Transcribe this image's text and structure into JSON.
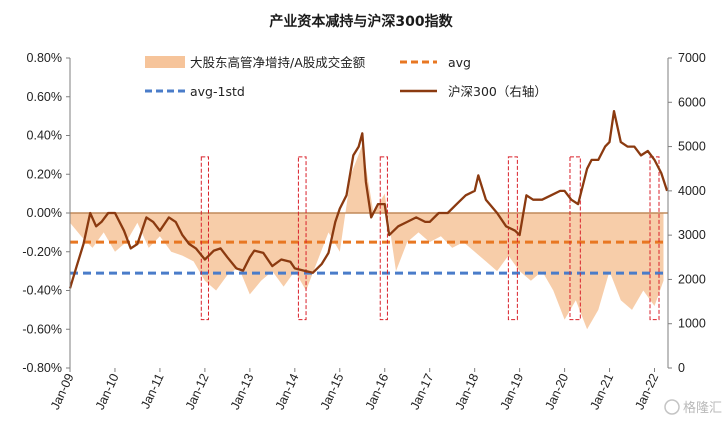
{
  "chart_data": {
    "type": "area",
    "title": "产业资本减持与沪深300指数",
    "left_axis": {
      "ylim": [
        -0.8,
        0.8
      ],
      "ticks": [
        "0.80%",
        "0.60%",
        "0.40%",
        "0.20%",
        "0.00%",
        "-0.20%",
        "-0.40%",
        "-0.60%",
        "-0.80%"
      ]
    },
    "right_axis": {
      "ylim": [
        0,
        7000
      ],
      "ticks": [
        "7000",
        "6000",
        "5000",
        "4000",
        "3000",
        "2000",
        "1000",
        "0"
      ]
    },
    "x_ticks": [
      "Jan-09",
      "Jan-10",
      "Jan-11",
      "Jan-12",
      "Jan-13",
      "Jan-14",
      "Jan-15",
      "Jan-16",
      "Jan-17",
      "Jan-18",
      "Jan-19",
      "Jan-20",
      "Jan-21",
      "Jan-22"
    ],
    "x_range": [
      2009.0,
      2022.3
    ],
    "legend": [
      {
        "label": "大股东高管净增持/A股成交金额",
        "kind": "area"
      },
      {
        "label": "avg",
        "kind": "dashed-orange"
      },
      {
        "label": "avg-1std",
        "kind": "dashed-blue"
      },
      {
        "label": "沪深300（右轴）",
        "kind": "line"
      }
    ],
    "series": [
      {
        "name": "大股东高管净增持/A股成交金额",
        "axis": "left",
        "color": "#f6c49a",
        "x": [
          2009.0,
          2009.25,
          2009.5,
          2009.75,
          2010.0,
          2010.25,
          2010.5,
          2010.75,
          2011.0,
          2011.25,
          2011.5,
          2011.75,
          2012.0,
          2012.25,
          2012.5,
          2012.75,
          2013.0,
          2013.25,
          2013.5,
          2013.75,
          2014.0,
          2014.25,
          2014.5,
          2014.75,
          2015.0,
          2015.25,
          2015.5,
          2015.75,
          2016.0,
          2016.25,
          2016.5,
          2016.75,
          2017.0,
          2017.25,
          2017.5,
          2017.75,
          2018.0,
          2018.25,
          2018.5,
          2018.75,
          2019.0,
          2019.25,
          2019.5,
          2019.75,
          2020.0,
          2020.25,
          2020.5,
          2020.75,
          2021.0,
          2021.25,
          2021.5,
          2021.75,
          2022.0,
          2022.2
        ],
        "values": [
          -0.05,
          -0.12,
          -0.18,
          -0.1,
          -0.2,
          -0.15,
          -0.05,
          -0.18,
          -0.12,
          -0.2,
          -0.22,
          -0.25,
          -0.35,
          -0.4,
          -0.32,
          -0.28,
          -0.42,
          -0.35,
          -0.3,
          -0.38,
          -0.3,
          -0.4,
          -0.25,
          -0.1,
          -0.2,
          0.2,
          0.35,
          0.0,
          0.1,
          -0.3,
          -0.15,
          -0.1,
          -0.15,
          -0.12,
          -0.18,
          -0.15,
          -0.2,
          -0.25,
          -0.3,
          -0.22,
          -0.3,
          -0.35,
          -0.3,
          -0.4,
          -0.55,
          -0.45,
          -0.6,
          -0.5,
          -0.3,
          -0.45,
          -0.5,
          -0.4,
          -0.48,
          -0.35
        ]
      },
      {
        "name": "avg",
        "axis": "left",
        "color": "#e87722",
        "x": [
          2009.0,
          2022.3
        ],
        "values": [
          -0.15,
          -0.15
        ]
      },
      {
        "name": "avg-1std",
        "axis": "left",
        "color": "#4a7cc9",
        "x": [
          2009.0,
          2022.3
        ],
        "values": [
          -0.31,
          -0.31
        ]
      },
      {
        "name": "沪深300（右轴）",
        "axis": "right",
        "color": "#8b3a10",
        "x": [
          2009.0,
          2009.15,
          2009.3,
          2009.45,
          2009.58,
          2009.7,
          2009.85,
          2010.0,
          2010.2,
          2010.35,
          2010.5,
          2010.7,
          2010.85,
          2011.0,
          2011.2,
          2011.35,
          2011.5,
          2011.65,
          2011.8,
          2012.0,
          2012.2,
          2012.35,
          2012.5,
          2012.7,
          2012.85,
          2013.0,
          2013.1,
          2013.3,
          2013.5,
          2013.7,
          2013.9,
          2014.0,
          2014.2,
          2014.4,
          2014.6,
          2014.75,
          2014.9,
          2015.0,
          2015.15,
          2015.3,
          2015.42,
          2015.5,
          2015.58,
          2015.7,
          2015.85,
          2016.0,
          2016.1,
          2016.3,
          2016.5,
          2016.7,
          2016.9,
          2017.0,
          2017.2,
          2017.4,
          2017.6,
          2017.8,
          2018.0,
          2018.08,
          2018.25,
          2018.5,
          2018.7,
          2018.9,
          2019.0,
          2019.15,
          2019.3,
          2019.5,
          2019.7,
          2019.9,
          2020.0,
          2020.15,
          2020.3,
          2020.5,
          2020.6,
          2020.75,
          2020.9,
          2021.0,
          2021.1,
          2021.25,
          2021.4,
          2021.55,
          2021.7,
          2021.85,
          2022.0,
          2022.15,
          2022.28
        ],
        "values": [
          1800,
          2300,
          2800,
          3500,
          3200,
          3300,
          3500,
          3500,
          3100,
          2700,
          2800,
          3400,
          3300,
          3100,
          3400,
          3300,
          3000,
          2800,
          2700,
          2450,
          2650,
          2700,
          2500,
          2250,
          2200,
          2500,
          2650,
          2600,
          2300,
          2450,
          2400,
          2250,
          2200,
          2150,
          2350,
          2600,
          3300,
          3600,
          3900,
          4800,
          5000,
          5300,
          4200,
          3400,
          3700,
          3700,
          3000,
          3200,
          3300,
          3400,
          3300,
          3300,
          3500,
          3500,
          3700,
          3900,
          4000,
          4350,
          3800,
          3500,
          3200,
          3100,
          3000,
          3900,
          3800,
          3800,
          3900,
          4000,
          4000,
          3800,
          3700,
          4500,
          4700,
          4700,
          5000,
          5100,
          5800,
          5100,
          5000,
          5000,
          4800,
          4900,
          4700,
          4400,
          4000
        ]
      }
    ],
    "highlight_periods": [
      [
        2011.92,
        2012.08
      ],
      [
        2014.08,
        2014.25
      ],
      [
        2015.9,
        2016.06
      ],
      [
        2018.75,
        2018.95
      ],
      [
        2020.12,
        2020.35
      ],
      [
        2021.9,
        2022.1
      ]
    ],
    "colors": {
      "area": "#f6c49a",
      "avg": "#e87722",
      "avg_1std": "#4a7cc9",
      "index_line": "#8b3a10",
      "highlight_box": "#d9202a",
      "zero_line": "#c08a5a"
    },
    "grid": false
  },
  "watermark": "格隆汇"
}
